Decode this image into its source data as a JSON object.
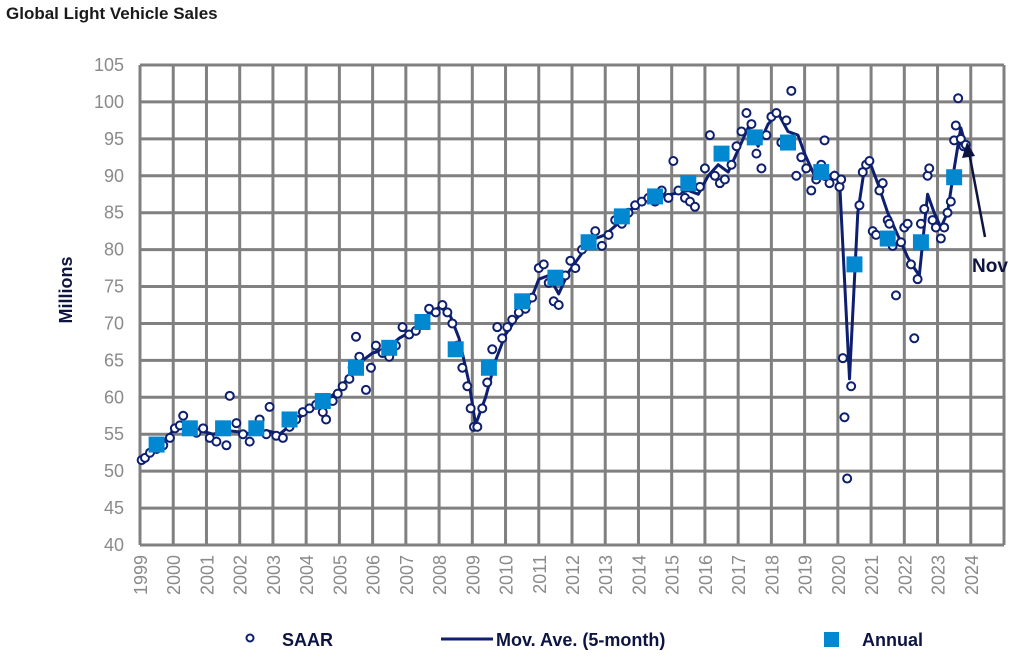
{
  "chart_data": {
    "type": "line",
    "title": "Global Light Vehicle Sales",
    "ylabel": "Millions",
    "xlabel": "",
    "ylim": [
      40,
      105
    ],
    "xlim": [
      1999,
      2025
    ],
    "yticks": [
      40,
      45,
      50,
      55,
      60,
      65,
      70,
      75,
      80,
      85,
      90,
      95,
      100,
      105
    ],
    "xticks": [
      "1999",
      "2000",
      "2001",
      "2002",
      "2003",
      "2004",
      "2005",
      "2006",
      "2007",
      "2008",
      "2009",
      "2010",
      "2011",
      "2012",
      "2013",
      "2014",
      "2015",
      "2016",
      "2017",
      "2018",
      "2019",
      "2020",
      "2021",
      "2022",
      "2023",
      "2024"
    ],
    "grid": true,
    "legend_position": "bottom",
    "annotation": {
      "text": "Nov",
      "x": 2023.85,
      "y": 94
    },
    "colors": {
      "saar": "#0d1f6e",
      "ma": "#0d1f6e",
      "annual": "#0288d1",
      "grid": "#808080"
    },
    "series": [
      {
        "name": "SAAR",
        "type": "scatter",
        "points": [
          [
            1999.05,
            51.5
          ],
          [
            1999.15,
            51.8
          ],
          [
            1999.3,
            52.5
          ],
          [
            1999.5,
            53
          ],
          [
            1999.7,
            53.5
          ],
          [
            1999.9,
            54.5
          ],
          [
            2000.05,
            55.8
          ],
          [
            2000.2,
            56.2
          ],
          [
            2000.3,
            57.5
          ],
          [
            2000.5,
            55.5
          ],
          [
            2000.7,
            55.2
          ],
          [
            2000.9,
            55.8
          ],
          [
            2001.1,
            54.5
          ],
          [
            2001.3,
            54
          ],
          [
            2001.5,
            55.5
          ],
          [
            2001.6,
            53.5
          ],
          [
            2001.7,
            60.2
          ],
          [
            2001.9,
            56.5
          ],
          [
            2002.1,
            55
          ],
          [
            2002.3,
            54
          ],
          [
            2002.5,
            56
          ],
          [
            2002.6,
            57
          ],
          [
            2002.8,
            55
          ],
          [
            2002.9,
            58.7
          ],
          [
            2003.1,
            54.8
          ],
          [
            2003.3,
            54.5
          ],
          [
            2003.5,
            56
          ],
          [
            2003.7,
            57
          ],
          [
            2003.9,
            58
          ],
          [
            2004.1,
            58.5
          ],
          [
            2004.3,
            59
          ],
          [
            2004.5,
            58
          ],
          [
            2004.6,
            57
          ],
          [
            2004.8,
            59.5
          ],
          [
            2004.95,
            60.5
          ],
          [
            2005.1,
            61.5
          ],
          [
            2005.3,
            62.5
          ],
          [
            2005.4,
            64
          ],
          [
            2005.5,
            68.2
          ],
          [
            2005.6,
            65.5
          ],
          [
            2005.8,
            61
          ],
          [
            2005.95,
            64
          ],
          [
            2006.1,
            67
          ],
          [
            2006.3,
            66
          ],
          [
            2006.5,
            65.5
          ],
          [
            2006.7,
            67
          ],
          [
            2006.9,
            69.5
          ],
          [
            2007.1,
            68.5
          ],
          [
            2007.3,
            69
          ],
          [
            2007.5,
            70.5
          ],
          [
            2007.7,
            72
          ],
          [
            2007.9,
            71.5
          ],
          [
            2008.1,
            72.5
          ],
          [
            2008.25,
            71.5
          ],
          [
            2008.4,
            70
          ],
          [
            2008.55,
            67
          ],
          [
            2008.7,
            64
          ],
          [
            2008.85,
            61.5
          ],
          [
            2008.95,
            58.5
          ],
          [
            2009.05,
            56
          ],
          [
            2009.15,
            56
          ],
          [
            2009.3,
            58.5
          ],
          [
            2009.45,
            62
          ],
          [
            2009.6,
            66.5
          ],
          [
            2009.75,
            69.5
          ],
          [
            2009.9,
            68
          ],
          [
            2010.05,
            69.5
          ],
          [
            2010.2,
            70.5
          ],
          [
            2010.4,
            71.5
          ],
          [
            2010.6,
            72
          ],
          [
            2010.8,
            73.5
          ],
          [
            2011.0,
            77.5
          ],
          [
            2011.15,
            78
          ],
          [
            2011.3,
            75.5
          ],
          [
            2011.45,
            73
          ],
          [
            2011.6,
            72.5
          ],
          [
            2011.8,
            76.5
          ],
          [
            2011.95,
            78.5
          ],
          [
            2012.1,
            77.5
          ],
          [
            2012.3,
            80
          ],
          [
            2012.5,
            81
          ],
          [
            2012.7,
            82.5
          ],
          [
            2012.9,
            80.5
          ],
          [
            2013.1,
            82
          ],
          [
            2013.3,
            84
          ],
          [
            2013.5,
            83.5
          ],
          [
            2013.7,
            85
          ],
          [
            2013.9,
            86
          ],
          [
            2014.1,
            86.5
          ],
          [
            2014.3,
            87
          ],
          [
            2014.5,
            86.5
          ],
          [
            2014.7,
            88
          ],
          [
            2014.9,
            87
          ],
          [
            2015.05,
            92
          ],
          [
            2015.2,
            88
          ],
          [
            2015.4,
            87
          ],
          [
            2015.55,
            86.5
          ],
          [
            2015.7,
            85.8
          ],
          [
            2015.85,
            88.5
          ],
          [
            2016.0,
            91
          ],
          [
            2016.15,
            95.5
          ],
          [
            2016.3,
            90
          ],
          [
            2016.45,
            89
          ],
          [
            2016.6,
            89.5
          ],
          [
            2016.8,
            91.5
          ],
          [
            2016.95,
            94
          ],
          [
            2017.1,
            96
          ],
          [
            2017.25,
            98.5
          ],
          [
            2017.4,
            97
          ],
          [
            2017.55,
            93
          ],
          [
            2017.7,
            91
          ],
          [
            2017.85,
            95.5
          ],
          [
            2018.0,
            98
          ],
          [
            2018.15,
            98.5
          ],
          [
            2018.3,
            94.5
          ],
          [
            2018.45,
            97.5
          ],
          [
            2018.6,
            101.5
          ],
          [
            2018.75,
            90
          ],
          [
            2018.9,
            92.5
          ],
          [
            2019.05,
            91
          ],
          [
            2019.2,
            88
          ],
          [
            2019.35,
            89.5
          ],
          [
            2019.5,
            91.5
          ],
          [
            2019.6,
            94.8
          ],
          [
            2019.75,
            89
          ],
          [
            2019.9,
            90
          ],
          [
            2020.05,
            88.5
          ],
          [
            2020.1,
            89.5
          ],
          [
            2020.15,
            65.3
          ],
          [
            2020.2,
            57.3
          ],
          [
            2020.28,
            49
          ],
          [
            2020.4,
            61.5
          ],
          [
            2020.55,
            78
          ],
          [
            2020.65,
            86
          ],
          [
            2020.75,
            90.5
          ],
          [
            2020.85,
            91.5
          ],
          [
            2020.95,
            92
          ],
          [
            2021.05,
            82.5
          ],
          [
            2021.15,
            82
          ],
          [
            2021.25,
            88
          ],
          [
            2021.35,
            89
          ],
          [
            2021.5,
            84
          ],
          [
            2021.55,
            83.5
          ],
          [
            2021.65,
            80.5
          ],
          [
            2021.75,
            73.8
          ],
          [
            2021.9,
            81
          ],
          [
            2022.0,
            83
          ],
          [
            2022.1,
            83.5
          ],
          [
            2022.2,
            78
          ],
          [
            2022.3,
            68
          ],
          [
            2022.4,
            76
          ],
          [
            2022.5,
            83.5
          ],
          [
            2022.6,
            85.5
          ],
          [
            2022.7,
            90
          ],
          [
            2022.75,
            91
          ],
          [
            2022.85,
            84
          ],
          [
            2022.95,
            83
          ],
          [
            2023.1,
            81.5
          ],
          [
            2023.2,
            83
          ],
          [
            2023.3,
            85
          ],
          [
            2023.4,
            86.5
          ],
          [
            2023.5,
            94.8
          ],
          [
            2023.55,
            96.8
          ],
          [
            2023.62,
            100.5
          ],
          [
            2023.7,
            95
          ],
          [
            2023.78,
            94
          ],
          [
            2023.85,
            94.2
          ]
        ]
      },
      {
        "name": "Mov. Ave. (5-month)",
        "type": "line",
        "points": [
          [
            1999.0,
            51.5
          ],
          [
            1999.5,
            53
          ],
          [
            2000.0,
            55.5
          ],
          [
            2000.3,
            56
          ],
          [
            2000.8,
            55.5
          ],
          [
            2001.2,
            55
          ],
          [
            2001.6,
            55.5
          ],
          [
            2002.0,
            55.3
          ],
          [
            2002.4,
            55
          ],
          [
            2002.8,
            55.5
          ],
          [
            2003.2,
            55
          ],
          [
            2003.6,
            56.5
          ],
          [
            2004.0,
            58
          ],
          [
            2004.5,
            59.3
          ],
          [
            2005.0,
            61
          ],
          [
            2005.3,
            63
          ],
          [
            2005.7,
            65
          ],
          [
            2006.0,
            66
          ],
          [
            2006.4,
            66.5
          ],
          [
            2006.8,
            68
          ],
          [
            2007.2,
            69
          ],
          [
            2007.6,
            71
          ],
          [
            2008.0,
            72.2
          ],
          [
            2008.3,
            71.5
          ],
          [
            2008.6,
            68
          ],
          [
            2008.9,
            62
          ],
          [
            2009.1,
            56.3
          ],
          [
            2009.4,
            60
          ],
          [
            2009.7,
            65
          ],
          [
            2010.0,
            68.5
          ],
          [
            2010.3,
            70.5
          ],
          [
            2010.7,
            72.5
          ],
          [
            2011.0,
            76
          ],
          [
            2011.3,
            76.5
          ],
          [
            2011.6,
            74
          ],
          [
            2011.9,
            77
          ],
          [
            2012.3,
            79.5
          ],
          [
            2012.7,
            81.5
          ],
          [
            2013.0,
            82
          ],
          [
            2013.5,
            84
          ],
          [
            2014.0,
            86.5
          ],
          [
            2014.5,
            87
          ],
          [
            2015.0,
            87.5
          ],
          [
            2015.5,
            88
          ],
          [
            2015.8,
            87.5
          ],
          [
            2016.1,
            90
          ],
          [
            2016.4,
            91.5
          ],
          [
            2016.7,
            90.5
          ],
          [
            2017.0,
            93.5
          ],
          [
            2017.3,
            96.5
          ],
          [
            2017.6,
            94
          ],
          [
            2017.9,
            97
          ],
          [
            2018.2,
            98.5
          ],
          [
            2018.5,
            96
          ],
          [
            2018.8,
            95.5
          ],
          [
            2019.0,
            93
          ],
          [
            2019.3,
            90
          ],
          [
            2019.6,
            89.5
          ],
          [
            2019.9,
            90.5
          ],
          [
            2020.05,
            89.5
          ],
          [
            2020.2,
            76
          ],
          [
            2020.35,
            62.5
          ],
          [
            2020.6,
            85
          ],
          [
            2020.8,
            91
          ],
          [
            2020.95,
            92
          ],
          [
            2021.2,
            89
          ],
          [
            2021.5,
            85
          ],
          [
            2021.7,
            83
          ],
          [
            2021.9,
            81
          ],
          [
            2022.1,
            79
          ],
          [
            2022.3,
            77.5
          ],
          [
            2022.45,
            76.5
          ],
          [
            2022.7,
            87.5
          ],
          [
            2022.9,
            85
          ],
          [
            2023.1,
            83
          ],
          [
            2023.3,
            85
          ],
          [
            2023.5,
            91
          ],
          [
            2023.7,
            96.5
          ],
          [
            2023.85,
            94
          ]
        ]
      },
      {
        "name": "Annual",
        "type": "scatter",
        "points": [
          [
            1999,
            53.6
          ],
          [
            2000,
            55.8
          ],
          [
            2001,
            55.8
          ],
          [
            2002,
            55.8
          ],
          [
            2003,
            57
          ],
          [
            2004,
            59.5
          ],
          [
            2005,
            64
          ],
          [
            2006,
            66.7
          ],
          [
            2007,
            70.2
          ],
          [
            2008,
            66.5
          ],
          [
            2009,
            64
          ],
          [
            2010,
            73
          ],
          [
            2011,
            76.2
          ],
          [
            2012,
            81
          ],
          [
            2013,
            84.5
          ],
          [
            2014,
            87.2
          ],
          [
            2015,
            89
          ],
          [
            2016,
            93
          ],
          [
            2017,
            95.2
          ],
          [
            2018,
            94.5
          ],
          [
            2019,
            90.5
          ],
          [
            2020,
            78
          ],
          [
            2021,
            81.5
          ],
          [
            2022,
            81
          ],
          [
            2023,
            89.8
          ]
        ]
      }
    ]
  }
}
